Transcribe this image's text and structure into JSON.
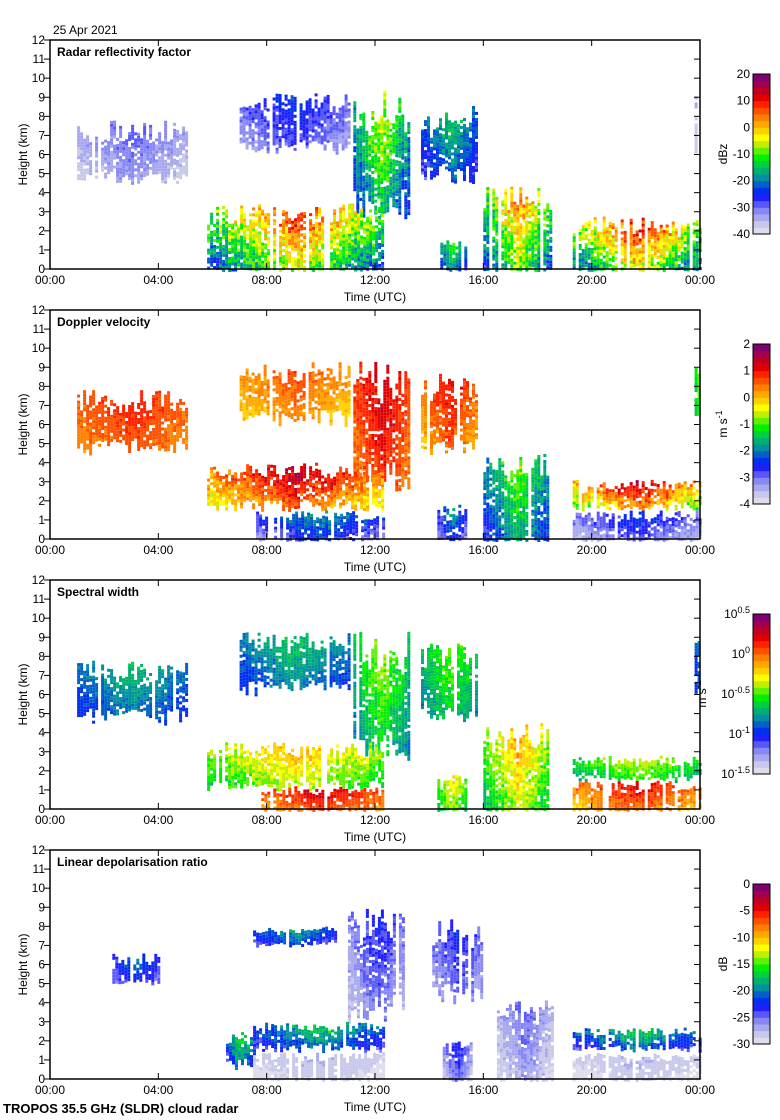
{
  "header": {
    "date": "25 Apr 2021"
  },
  "footer": {
    "instrument": "TROPOS 35.5 GHz (SLDR) cloud radar"
  },
  "colormap": [
    "#dcdcec",
    "#c8c8ea",
    "#a8a8ee",
    "#8888f4",
    "#5858f8",
    "#2020ff",
    "#0030ee",
    "#0060c8",
    "#0090a0",
    "#00b070",
    "#00d040",
    "#00f000",
    "#60f000",
    "#c0f000",
    "#ffff00",
    "#ffd000",
    "#ffa800",
    "#ff8000",
    "#ff5000",
    "#ff2000",
    "#e00000",
    "#c00020",
    "#a00050",
    "#800070"
  ],
  "chart_data": [
    {
      "type": "heatmap",
      "id": "reflectivity",
      "title": "Radar reflectivity factor",
      "xlabel": "Time (UTC)",
      "ylabel": "Height (km)",
      "xlim": [
        0,
        24
      ],
      "ylim": [
        0,
        12
      ],
      "x_ticks": [
        0,
        4,
        8,
        12,
        16,
        20,
        24
      ],
      "x_tick_labels": [
        "00:00",
        "04:00",
        "08:00",
        "12:00",
        "16:00",
        "20:00",
        "00:00"
      ],
      "y_ticks": [
        0,
        1,
        2,
        3,
        4,
        5,
        6,
        7,
        8,
        9,
        10,
        11,
        12
      ],
      "y_tick_labels": [
        "0",
        "1",
        "2",
        "3",
        "4",
        "5",
        "6",
        "7",
        "8",
        "9",
        "10",
        "11",
        "12"
      ],
      "colorbar": {
        "label": "dBz",
        "range": [
          -40,
          20
        ],
        "ticks": [
          "20",
          "10",
          "0",
          "-10",
          "-20",
          "-30",
          "-40"
        ]
      },
      "regions": [
        {
          "t": [
            1.0,
            5.0
          ],
          "h": [
            4.5,
            7.8
          ],
          "v": [
            -38,
            -28
          ]
        },
        {
          "t": [
            7.0,
            11.0
          ],
          "h": [
            6.0,
            9.3
          ],
          "v": [
            -36,
            -22
          ]
        },
        {
          "t": [
            11.2,
            13.2
          ],
          "h": [
            2.5,
            9.4
          ],
          "v": [
            -30,
            -2
          ]
        },
        {
          "t": [
            13.7,
            15.8
          ],
          "h": [
            4.5,
            8.7
          ],
          "v": [
            -32,
            -12
          ]
        },
        {
          "t": [
            5.8,
            12.3
          ],
          "h": [
            0,
            3.5
          ],
          "v": [
            -30,
            12
          ]
        },
        {
          "t": [
            14.3,
            15.3
          ],
          "h": [
            0,
            1.8
          ],
          "v": [
            -30,
            -8
          ]
        },
        {
          "t": [
            16.0,
            18.5
          ],
          "h": [
            0,
            4.5
          ],
          "v": [
            -30,
            8
          ]
        },
        {
          "t": [
            19.3,
            24.0
          ],
          "h": [
            0,
            2.8
          ],
          "v": [
            -28,
            14
          ]
        },
        {
          "t": [
            23.8,
            24.0
          ],
          "h": [
            6.0,
            9.2
          ],
          "v": [
            -38,
            -30
          ]
        }
      ]
    },
    {
      "type": "heatmap",
      "id": "doppler",
      "title": "Doppler velocity",
      "xlabel": "Time (UTC)",
      "ylabel": "Height (km)",
      "xlim": [
        0,
        24
      ],
      "ylim": [
        0,
        12
      ],
      "x_ticks": [
        0,
        4,
        8,
        12,
        16,
        20,
        24
      ],
      "x_tick_labels": [
        "00:00",
        "04:00",
        "08:00",
        "12:00",
        "16:00",
        "20:00",
        "00:00"
      ],
      "y_ticks": [
        0,
        1,
        2,
        3,
        4,
        5,
        6,
        7,
        8,
        9,
        10,
        11,
        12
      ],
      "y_tick_labels": [
        "0",
        "1",
        "2",
        "3",
        "4",
        "5",
        "6",
        "7",
        "8",
        "9",
        "10",
        "11",
        "12"
      ],
      "colorbar": {
        "label": "m s-1",
        "range": [
          -4,
          2
        ],
        "ticks": [
          "2",
          "1",
          "0",
          "-1",
          "-2",
          "-3",
          "-4"
        ]
      },
      "regions": [
        {
          "t": [
            1.0,
            5.0
          ],
          "h": [
            4.5,
            7.8
          ],
          "v": [
            0.2,
            1.0
          ]
        },
        {
          "t": [
            7.0,
            11.0
          ],
          "h": [
            6.0,
            9.3
          ],
          "v": [
            -0.3,
            0.8
          ]
        },
        {
          "t": [
            11.2,
            13.2
          ],
          "h": [
            2.5,
            9.4
          ],
          "v": [
            0.2,
            1.4
          ]
        },
        {
          "t": [
            13.7,
            15.8
          ],
          "h": [
            4.5,
            8.7
          ],
          "v": [
            -0.2,
            1.2
          ]
        },
        {
          "t": [
            5.8,
            12.3
          ],
          "h": [
            1.5,
            4.0
          ],
          "v": [
            -0.8,
            1.6
          ]
        },
        {
          "t": [
            7.5,
            12.3
          ],
          "h": [
            0,
            1.5
          ],
          "v": [
            -3.6,
            -1.6
          ]
        },
        {
          "t": [
            14.3,
            15.3
          ],
          "h": [
            0,
            1.8
          ],
          "v": [
            -3.5,
            -1.5
          ]
        },
        {
          "t": [
            16.0,
            18.5
          ],
          "h": [
            0,
            4.5
          ],
          "v": [
            -3.0,
            -0.6
          ]
        },
        {
          "t": [
            19.3,
            24.0
          ],
          "h": [
            1.5,
            3.1
          ],
          "v": [
            -1.5,
            1.6
          ]
        },
        {
          "t": [
            19.3,
            24.0
          ],
          "h": [
            0,
            1.5
          ],
          "v": [
            -3.8,
            -2.2
          ]
        },
        {
          "t": [
            23.8,
            24.0
          ],
          "h": [
            6.0,
            9.2
          ],
          "v": [
            -1.5,
            -0.8
          ]
        }
      ]
    },
    {
      "type": "heatmap",
      "id": "spectral_width",
      "title": "Spectral width",
      "xlabel": "Time (UTC)",
      "ylabel": "Height (km)",
      "xlim": [
        0,
        24
      ],
      "ylim": [
        0,
        12
      ],
      "x_ticks": [
        0,
        4,
        8,
        12,
        16,
        20,
        24
      ],
      "x_tick_labels": [
        "00:00",
        "04:00",
        "08:00",
        "12:00",
        "16:00",
        "20:00",
        "00:00"
      ],
      "y_ticks": [
        0,
        1,
        2,
        3,
        4,
        5,
        6,
        7,
        8,
        9,
        10,
        11,
        12
      ],
      "y_tick_labels": [
        "0",
        "1",
        "2",
        "3",
        "4",
        "5",
        "6",
        "7",
        "8",
        "9",
        "10",
        "11",
        "12"
      ],
      "colorbar": {
        "label": "m s-1",
        "scale": "log10",
        "range": [
          -1.5,
          0.5
        ],
        "ticks": [
          "10^0.5",
          "10^0",
          "10^-0.5",
          "10^-1",
          "10^-1.5"
        ]
      },
      "regions": [
        {
          "t": [
            1.0,
            5.0
          ],
          "h": [
            4.5,
            7.8
          ],
          "v": [
            -1.05,
            -0.65
          ]
        },
        {
          "t": [
            7.0,
            11.0
          ],
          "h": [
            6.0,
            9.3
          ],
          "v": [
            -1.05,
            -0.6
          ]
        },
        {
          "t": [
            11.2,
            13.2
          ],
          "h": [
            2.5,
            9.4
          ],
          "v": [
            -0.9,
            -0.35
          ]
        },
        {
          "t": [
            13.7,
            15.8
          ],
          "h": [
            4.5,
            8.7
          ],
          "v": [
            -0.9,
            -0.4
          ]
        },
        {
          "t": [
            5.8,
            12.3
          ],
          "h": [
            1.0,
            3.5
          ],
          "v": [
            -0.7,
            -0.1
          ]
        },
        {
          "t": [
            7.8,
            12.3
          ],
          "h": [
            0,
            1.2
          ],
          "v": [
            -0.2,
            0.3
          ]
        },
        {
          "t": [
            14.3,
            15.3
          ],
          "h": [
            0,
            1.8
          ],
          "v": [
            -0.7,
            -0.2
          ]
        },
        {
          "t": [
            16.0,
            18.5
          ],
          "h": [
            0,
            4.5
          ],
          "v": [
            -0.8,
            -0.05
          ]
        },
        {
          "t": [
            19.3,
            24.0
          ],
          "h": [
            1.5,
            2.8
          ],
          "v": [
            -0.8,
            -0.3
          ]
        },
        {
          "t": [
            19.3,
            24.0
          ],
          "h": [
            0,
            1.5
          ],
          "v": [
            -0.3,
            0.25
          ]
        },
        {
          "t": [
            23.8,
            24.0
          ],
          "h": [
            6.0,
            9.2
          ],
          "v": [
            -1.0,
            -0.8
          ]
        }
      ]
    },
    {
      "type": "heatmap",
      "id": "ldr",
      "title": "Linear depolarisation ratio",
      "xlabel": "Time (UTC)",
      "ylabel": "Height (km)",
      "xlim": [
        0,
        24
      ],
      "ylim": [
        0,
        12
      ],
      "x_ticks": [
        0,
        4,
        8,
        12,
        16,
        20,
        24
      ],
      "x_tick_labels": [
        "00:00",
        "04:00",
        "08:00",
        "12:00",
        "16:00",
        "20:00",
        "00:00"
      ],
      "y_ticks": [
        0,
        1,
        2,
        3,
        4,
        5,
        6,
        7,
        8,
        9,
        10,
        11,
        12
      ],
      "y_tick_labels": [
        "0",
        "1",
        "2",
        "3",
        "4",
        "5",
        "6",
        "7",
        "8",
        "9",
        "10",
        "11",
        "12"
      ],
      "colorbar": {
        "label": "dB",
        "range": [
          -30,
          0
        ],
        "ticks": [
          "0",
          "-5",
          "-10",
          "-15",
          "-20",
          "-25",
          "-30"
        ]
      },
      "regions": [
        {
          "t": [
            2.3,
            4.0
          ],
          "h": [
            4.8,
            6.6
          ],
          "v": [
            -26,
            -20
          ]
        },
        {
          "t": [
            7.5,
            10.5
          ],
          "h": [
            7.0,
            8.0
          ],
          "v": [
            -26,
            -18
          ]
        },
        {
          "t": [
            11.0,
            13.2
          ],
          "h": [
            3.0,
            9.1
          ],
          "v": [
            -29,
            -22
          ]
        },
        {
          "t": [
            14.0,
            16.0
          ],
          "h": [
            4.0,
            8.4
          ],
          "v": [
            -28,
            -22
          ]
        },
        {
          "t": [
            6.5,
            7.5
          ],
          "h": [
            0.5,
            2.5
          ],
          "v": [
            -26,
            -14
          ]
        },
        {
          "t": [
            7.5,
            12.3
          ],
          "h": [
            1.5,
            3.0
          ],
          "v": [
            -26,
            -16
          ]
        },
        {
          "t": [
            7.5,
            12.3
          ],
          "h": [
            0,
            1.4
          ],
          "v": [
            -30,
            -27
          ]
        },
        {
          "t": [
            14.5,
            15.5
          ],
          "h": [
            0,
            2.0
          ],
          "v": [
            -29,
            -22
          ]
        },
        {
          "t": [
            16.5,
            18.5
          ],
          "h": [
            0,
            4.4
          ],
          "v": [
            -30,
            -24
          ]
        },
        {
          "t": [
            19.3,
            24.0
          ],
          "h": [
            1.5,
            2.7
          ],
          "v": [
            -26,
            -16
          ]
        },
        {
          "t": [
            19.3,
            24.0
          ],
          "h": [
            0,
            1.4
          ],
          "v": [
            -30,
            -27
          ]
        }
      ]
    }
  ]
}
